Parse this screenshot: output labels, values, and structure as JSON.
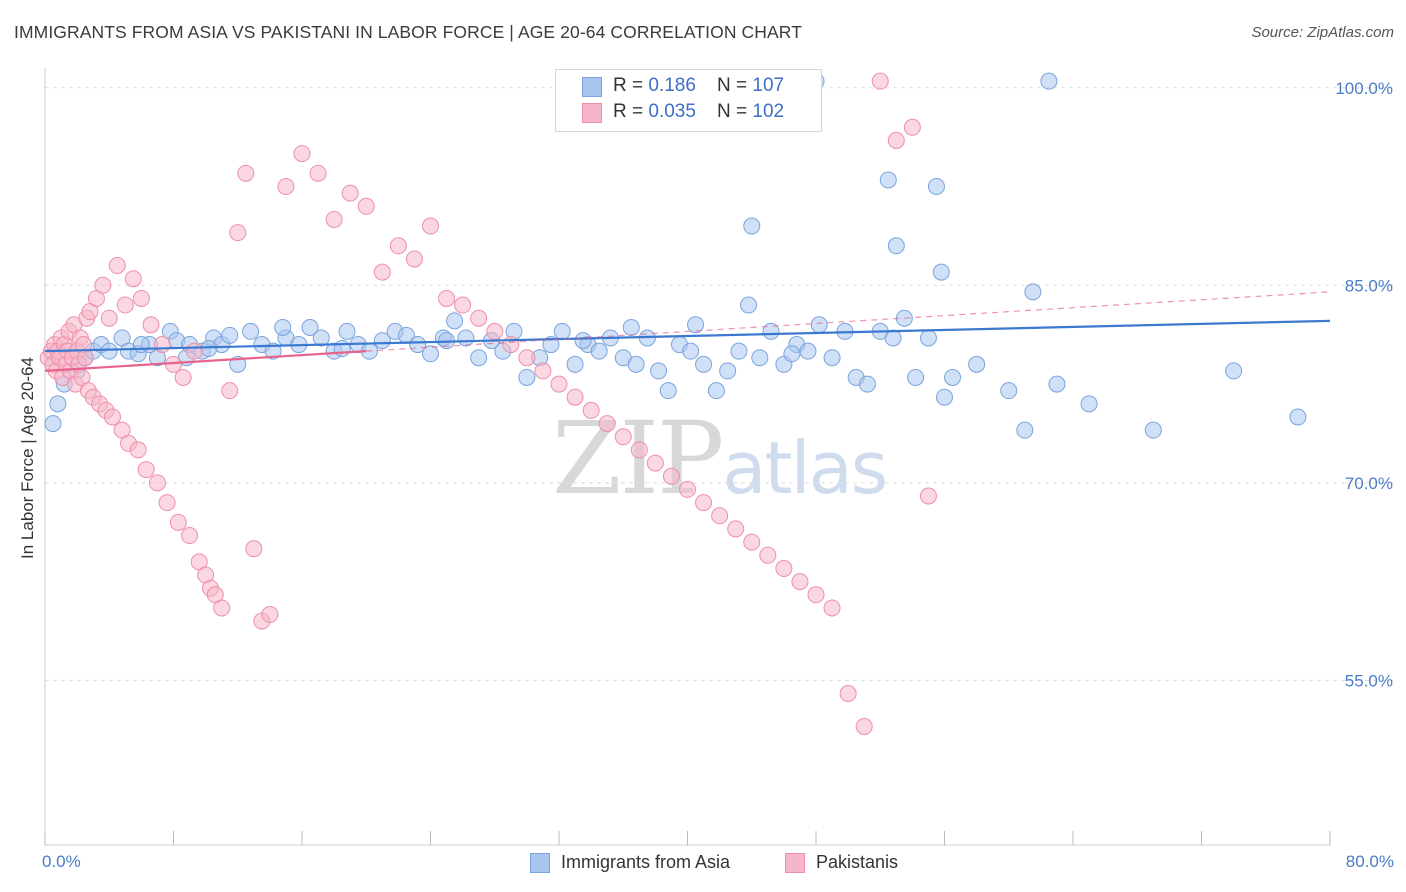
{
  "header": {
    "title": "IMMIGRANTS FROM ASIA VS PAKISTANI IN LABOR FORCE | AGE 20-64 CORRELATION CHART",
    "source": "Source: ZipAtlas.com"
  },
  "watermark": {
    "zip": "ZIP",
    "atlas": "atlas"
  },
  "legend_top": {
    "rows": [
      {
        "r_label": "R = ",
        "r_value": "0.186",
        "n_label": "N = ",
        "n_value": "107"
      },
      {
        "r_label": "R = ",
        "r_value": "0.035",
        "n_label": "N = ",
        "n_value": "102"
      }
    ]
  },
  "legend_bottom": {
    "items": [
      {
        "label": "Immigrants from Asia"
      },
      {
        "label": "Pakistanis"
      }
    ]
  },
  "colors": {
    "blue_fill": "#a9c6ee",
    "blue_stroke": "#7aa4dd",
    "blue_line": "#3b78d0",
    "pink_fill": "#f6b6c9",
    "pink_stroke": "#ee8fab",
    "pink_line": "#e8628e",
    "axis_value": "#4a7cc7",
    "grid": "#dddddd"
  },
  "chart_data": {
    "type": "scatter",
    "title": "IMMIGRANTS FROM ASIA VS PAKISTANI IN LABOR FORCE | AGE 20-64 CORRELATION CHART",
    "xlabel": "",
    "ylabel": "In Labor Force | Age 20-64",
    "xlim": [
      0,
      80
    ],
    "ylim": [
      42.5,
      101.5
    ],
    "x_tick_labels": [
      "0.0%",
      "80.0%"
    ],
    "y_ticks": [
      55,
      70,
      85,
      100
    ],
    "y_tick_labels": [
      "55.0%",
      "70.0%",
      "85.0%",
      "100.0%"
    ],
    "grid": true,
    "legend_position": "top-center",
    "series": [
      {
        "name": "Immigrants from Asia",
        "r": 0.186,
        "n": 107,
        "trend": {
          "x0": 0,
          "y0": 80.0,
          "x1": 80,
          "y1": 82.3,
          "style": "solid"
        },
        "points": [
          [
            0.5,
            74.5
          ],
          [
            0.8,
            76.0
          ],
          [
            1.2,
            77.5
          ],
          [
            2.0,
            78.5
          ],
          [
            2.5,
            79.5
          ],
          [
            3.0,
            80.0
          ],
          [
            3.5,
            80.5
          ],
          [
            4.0,
            80.0
          ],
          [
            4.8,
            81.0
          ],
          [
            5.2,
            80.0
          ],
          [
            5.8,
            79.8
          ],
          [
            6.5,
            80.5
          ],
          [
            7.0,
            79.5
          ],
          [
            7.8,
            81.5
          ],
          [
            8.2,
            80.8
          ],
          [
            9.0,
            80.5
          ],
          [
            9.8,
            80.0
          ],
          [
            10.5,
            81.0
          ],
          [
            11.0,
            80.5
          ],
          [
            11.5,
            81.2
          ],
          [
            12.0,
            79.0
          ],
          [
            12.8,
            81.5
          ],
          [
            13.5,
            80.5
          ],
          [
            14.2,
            80.0
          ],
          [
            15.0,
            81.0
          ],
          [
            15.8,
            80.5
          ],
          [
            16.5,
            81.8
          ],
          [
            17.2,
            81.0
          ],
          [
            18.0,
            80.0
          ],
          [
            18.8,
            81.5
          ],
          [
            19.5,
            80.5
          ],
          [
            20.2,
            80.0
          ],
          [
            21.0,
            80.8
          ],
          [
            21.8,
            81.5
          ],
          [
            22.5,
            81.2
          ],
          [
            23.2,
            80.5
          ],
          [
            24.0,
            79.8
          ],
          [
            24.8,
            81.0
          ],
          [
            25.5,
            82.3
          ],
          [
            26.2,
            81.0
          ],
          [
            27.0,
            79.5
          ],
          [
            27.8,
            80.8
          ],
          [
            28.5,
            80.0
          ],
          [
            29.2,
            81.5
          ],
          [
            30.0,
            78.0
          ],
          [
            30.8,
            79.5
          ],
          [
            31.5,
            80.5
          ],
          [
            32.2,
            81.5
          ],
          [
            33.0,
            79.0
          ],
          [
            33.8,
            80.5
          ],
          [
            34.5,
            80.0
          ],
          [
            35.2,
            81.0
          ],
          [
            36.0,
            79.5
          ],
          [
            36.8,
            79.0
          ],
          [
            37.5,
            81.0
          ],
          [
            38.2,
            78.5
          ],
          [
            38.8,
            77.0
          ],
          [
            39.5,
            80.5
          ],
          [
            40.2,
            80.0
          ],
          [
            41.0,
            79.0
          ],
          [
            41.8,
            77.0
          ],
          [
            42.5,
            78.5
          ],
          [
            43.2,
            80.0
          ],
          [
            43.8,
            83.5
          ],
          [
            44.5,
            79.5
          ],
          [
            45.2,
            81.5
          ],
          [
            46.0,
            79.0
          ],
          [
            46.8,
            80.5
          ],
          [
            47.5,
            80.0
          ],
          [
            48.2,
            82.0
          ],
          [
            49.0,
            79.5
          ],
          [
            49.8,
            81.5
          ],
          [
            50.5,
            78.0
          ],
          [
            51.2,
            77.5
          ],
          [
            52.0,
            81.5
          ],
          [
            52.8,
            81.0
          ],
          [
            53.5,
            82.5
          ],
          [
            54.2,
            78.0
          ],
          [
            55.0,
            81.0
          ],
          [
            55.8,
            86.0
          ],
          [
            56.5,
            78.0
          ],
          [
            58.0,
            79.0
          ],
          [
            60.0,
            77.0
          ],
          [
            61.0,
            74.0
          ],
          [
            63.0,
            77.5
          ],
          [
            65.0,
            76.0
          ],
          [
            69.0,
            74.0
          ],
          [
            74.0,
            78.5
          ],
          [
            78.0,
            75.0
          ],
          [
            56.0,
            76.5
          ],
          [
            40.5,
            82.0
          ],
          [
            33.5,
            80.8
          ],
          [
            46.5,
            79.8
          ],
          [
            36.5,
            81.8
          ],
          [
            25.0,
            80.8
          ],
          [
            18.5,
            80.2
          ],
          [
            14.8,
            81.8
          ],
          [
            10.2,
            80.2
          ],
          [
            8.8,
            79.5
          ],
          [
            6.0,
            80.5
          ],
          [
            44.0,
            89.5
          ],
          [
            52.5,
            93.0
          ],
          [
            55.5,
            92.5
          ],
          [
            61.5,
            84.5
          ],
          [
            62.5,
            100.5
          ],
          [
            48.0,
            100.5
          ],
          [
            53.0,
            88.0
          ]
        ]
      },
      {
        "name": "Pakistanis",
        "r": 0.035,
        "n": 102,
        "trend": {
          "x0": 0,
          "y0": 78.5,
          "x1": 80,
          "y1": 84.5,
          "solid_until_x": 20,
          "style": "solid-then-dashed"
        },
        "points": [
          [
            0.2,
            79.5
          ],
          [
            0.4,
            80.0
          ],
          [
            0.5,
            79.0
          ],
          [
            0.6,
            80.5
          ],
          [
            0.7,
            78.5
          ],
          [
            0.8,
            80.0
          ],
          [
            0.9,
            79.5
          ],
          [
            1.0,
            81.0
          ],
          [
            1.1,
            78.0
          ],
          [
            1.2,
            80.5
          ],
          [
            1.3,
            79.0
          ],
          [
            1.4,
            80.0
          ],
          [
            1.5,
            81.5
          ],
          [
            1.6,
            78.5
          ],
          [
            1.7,
            79.5
          ],
          [
            1.8,
            82.0
          ],
          [
            1.9,
            77.5
          ],
          [
            2.0,
            80.0
          ],
          [
            2.1,
            79.0
          ],
          [
            2.2,
            81.0
          ],
          [
            2.3,
            78.0
          ],
          [
            2.4,
            80.5
          ],
          [
            2.5,
            79.5
          ],
          [
            2.6,
            82.5
          ],
          [
            2.7,
            77.0
          ],
          [
            2.8,
            83.0
          ],
          [
            3.0,
            76.5
          ],
          [
            3.2,
            84.0
          ],
          [
            3.4,
            76.0
          ],
          [
            3.6,
            85.0
          ],
          [
            3.8,
            75.5
          ],
          [
            4.0,
            82.5
          ],
          [
            4.2,
            75.0
          ],
          [
            4.5,
            86.5
          ],
          [
            4.8,
            74.0
          ],
          [
            5.0,
            83.5
          ],
          [
            5.2,
            73.0
          ],
          [
            5.5,
            85.5
          ],
          [
            5.8,
            72.5
          ],
          [
            6.0,
            84.0
          ],
          [
            6.3,
            71.0
          ],
          [
            6.6,
            82.0
          ],
          [
            7.0,
            70.0
          ],
          [
            7.3,
            80.5
          ],
          [
            7.6,
            68.5
          ],
          [
            8.0,
            79.0
          ],
          [
            8.3,
            67.0
          ],
          [
            8.6,
            78.0
          ],
          [
            9.0,
            66.0
          ],
          [
            9.3,
            80.0
          ],
          [
            9.6,
            64.0
          ],
          [
            10.0,
            63.0
          ],
          [
            10.3,
            62.0
          ],
          [
            10.6,
            61.5
          ],
          [
            11.0,
            60.5
          ],
          [
            11.5,
            77.0
          ],
          [
            12.0,
            89.0
          ],
          [
            12.5,
            93.5
          ],
          [
            13.0,
            65.0
          ],
          [
            13.5,
            59.5
          ],
          [
            14.0,
            60.0
          ],
          [
            15.0,
            92.5
          ],
          [
            16.0,
            95.0
          ],
          [
            17.0,
            93.5
          ],
          [
            18.0,
            90.0
          ],
          [
            19.0,
            92.0
          ],
          [
            20.0,
            91.0
          ],
          [
            21.0,
            86.0
          ],
          [
            22.0,
            88.0
          ],
          [
            23.0,
            87.0
          ],
          [
            24.0,
            89.5
          ],
          [
            25.0,
            84.0
          ],
          [
            26.0,
            83.5
          ],
          [
            27.0,
            82.5
          ],
          [
            28.0,
            81.5
          ],
          [
            29.0,
            80.5
          ],
          [
            30.0,
            79.5
          ],
          [
            31.0,
            78.5
          ],
          [
            32.0,
            77.5
          ],
          [
            33.0,
            76.5
          ],
          [
            34.0,
            75.5
          ],
          [
            35.0,
            74.5
          ],
          [
            36.0,
            73.5
          ],
          [
            37.0,
            72.5
          ],
          [
            38.0,
            71.5
          ],
          [
            39.0,
            70.5
          ],
          [
            40.0,
            69.5
          ],
          [
            41.0,
            68.5
          ],
          [
            42.0,
            67.5
          ],
          [
            43.0,
            66.5
          ],
          [
            44.0,
            65.5
          ],
          [
            45.0,
            64.5
          ],
          [
            46.0,
            63.5
          ],
          [
            47.0,
            62.5
          ],
          [
            48.0,
            61.5
          ],
          [
            49.0,
            60.5
          ],
          [
            50.0,
            54.0
          ],
          [
            51.0,
            51.5
          ],
          [
            52.0,
            100.5
          ],
          [
            53.0,
            96.0
          ],
          [
            54.0,
            97.0
          ],
          [
            55.0,
            69.0
          ]
        ]
      }
    ]
  }
}
